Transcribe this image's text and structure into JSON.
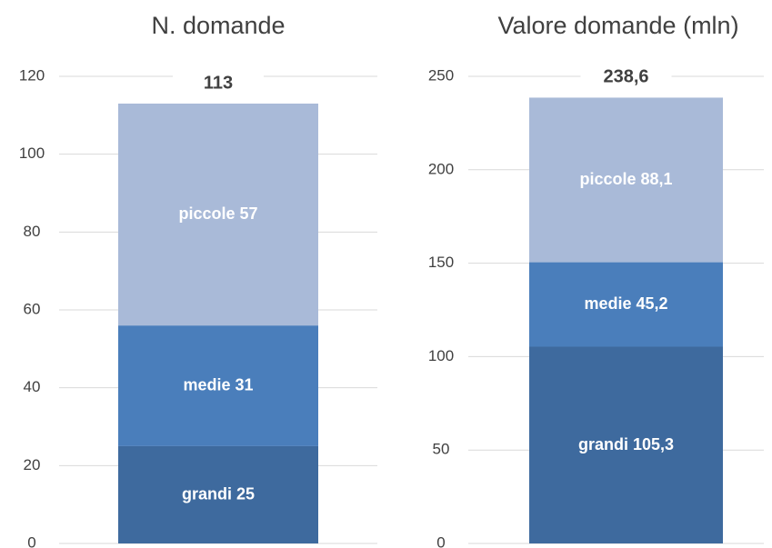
{
  "chart_data": [
    {
      "type": "bar",
      "stacked": true,
      "title": "N. domande",
      "series": [
        {
          "name": "grandi",
          "color": "#3e6a9e",
          "values": [
            25
          ]
        },
        {
          "name": "medie",
          "color": "#4a7ebb",
          "values": [
            31
          ]
        },
        {
          "name": "piccole",
          "color": "#a9bad8",
          "values": [
            57
          ]
        }
      ],
      "total": 113,
      "ylim": [
        0,
        120
      ],
      "yticks": [
        0,
        20,
        40,
        60,
        80,
        100,
        120
      ],
      "grid": true
    },
    {
      "type": "bar",
      "stacked": true,
      "title": "Valore domande (mln)",
      "series": [
        {
          "name": "grandi",
          "color": "#3e6a9e",
          "values": [
            105.3
          ],
          "value_labels": [
            "105,3"
          ]
        },
        {
          "name": "medie",
          "color": "#4a7ebb",
          "values": [
            45.2
          ],
          "value_labels": [
            "45,2"
          ]
        },
        {
          "name": "piccole",
          "color": "#a9bad8",
          "values": [
            88.1
          ],
          "value_labels": [
            "88,1"
          ]
        }
      ],
      "total": 238.6,
      "total_label": "238,6",
      "ylim": [
        0,
        250
      ],
      "yticks": [
        0,
        50,
        100,
        150,
        200,
        250
      ],
      "grid": true
    }
  ]
}
